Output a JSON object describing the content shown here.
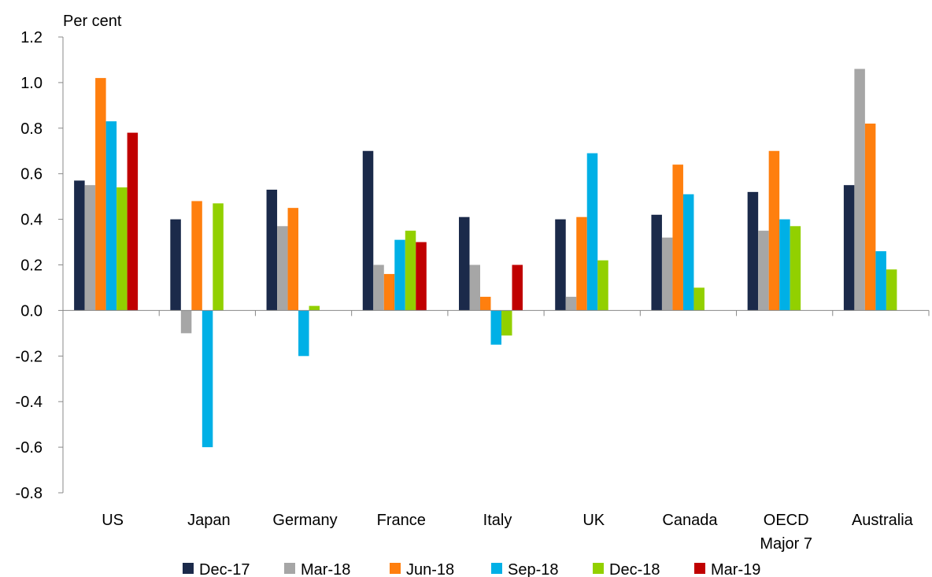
{
  "chart_data": {
    "type": "bar",
    "ylabel": "Per cent",
    "ylim": [
      -0.8,
      1.2
    ],
    "yticks": [
      "1.2",
      "1.0",
      "0.8",
      "0.6",
      "0.4",
      "0.2",
      "0.0",
      "-0.2",
      "-0.4",
      "-0.6",
      "-0.8"
    ],
    "grid": false,
    "legend": "bottom",
    "categories": [
      [
        "US"
      ],
      [
        "Japan"
      ],
      [
        "Germany"
      ],
      [
        "France"
      ],
      [
        "Italy"
      ],
      [
        "UK"
      ],
      [
        "Canada"
      ],
      [
        "OECD",
        "Major 7"
      ],
      [
        "Australia"
      ]
    ],
    "series": [
      {
        "name": "Dec-17",
        "color": "#1b2a4a",
        "values": [
          0.57,
          0.4,
          0.53,
          0.7,
          0.41,
          0.4,
          0.42,
          0.52,
          0.55
        ]
      },
      {
        "name": "Mar-18",
        "color": "#a6a6a6",
        "values": [
          0.55,
          -0.1,
          0.37,
          0.2,
          0.2,
          0.06,
          0.32,
          0.35,
          1.06
        ]
      },
      {
        "name": "Jun-18",
        "color": "#ff7f0e",
        "values": [
          1.02,
          0.48,
          0.45,
          0.16,
          0.06,
          0.41,
          0.64,
          0.7,
          0.82
        ]
      },
      {
        "name": "Sep-18",
        "color": "#00b0e6",
        "values": [
          0.83,
          -0.6,
          -0.2,
          0.31,
          -0.15,
          0.69,
          0.51,
          0.4,
          0.26
        ]
      },
      {
        "name": "Dec-18",
        "color": "#92d000",
        "values": [
          0.54,
          0.47,
          0.02,
          0.35,
          -0.11,
          0.22,
          0.1,
          0.37,
          0.18
        ]
      },
      {
        "name": "Mar-19",
        "color": "#c00000",
        "values": [
          0.78,
          null,
          null,
          0.3,
          0.2,
          null,
          null,
          null,
          null
        ]
      }
    ]
  }
}
